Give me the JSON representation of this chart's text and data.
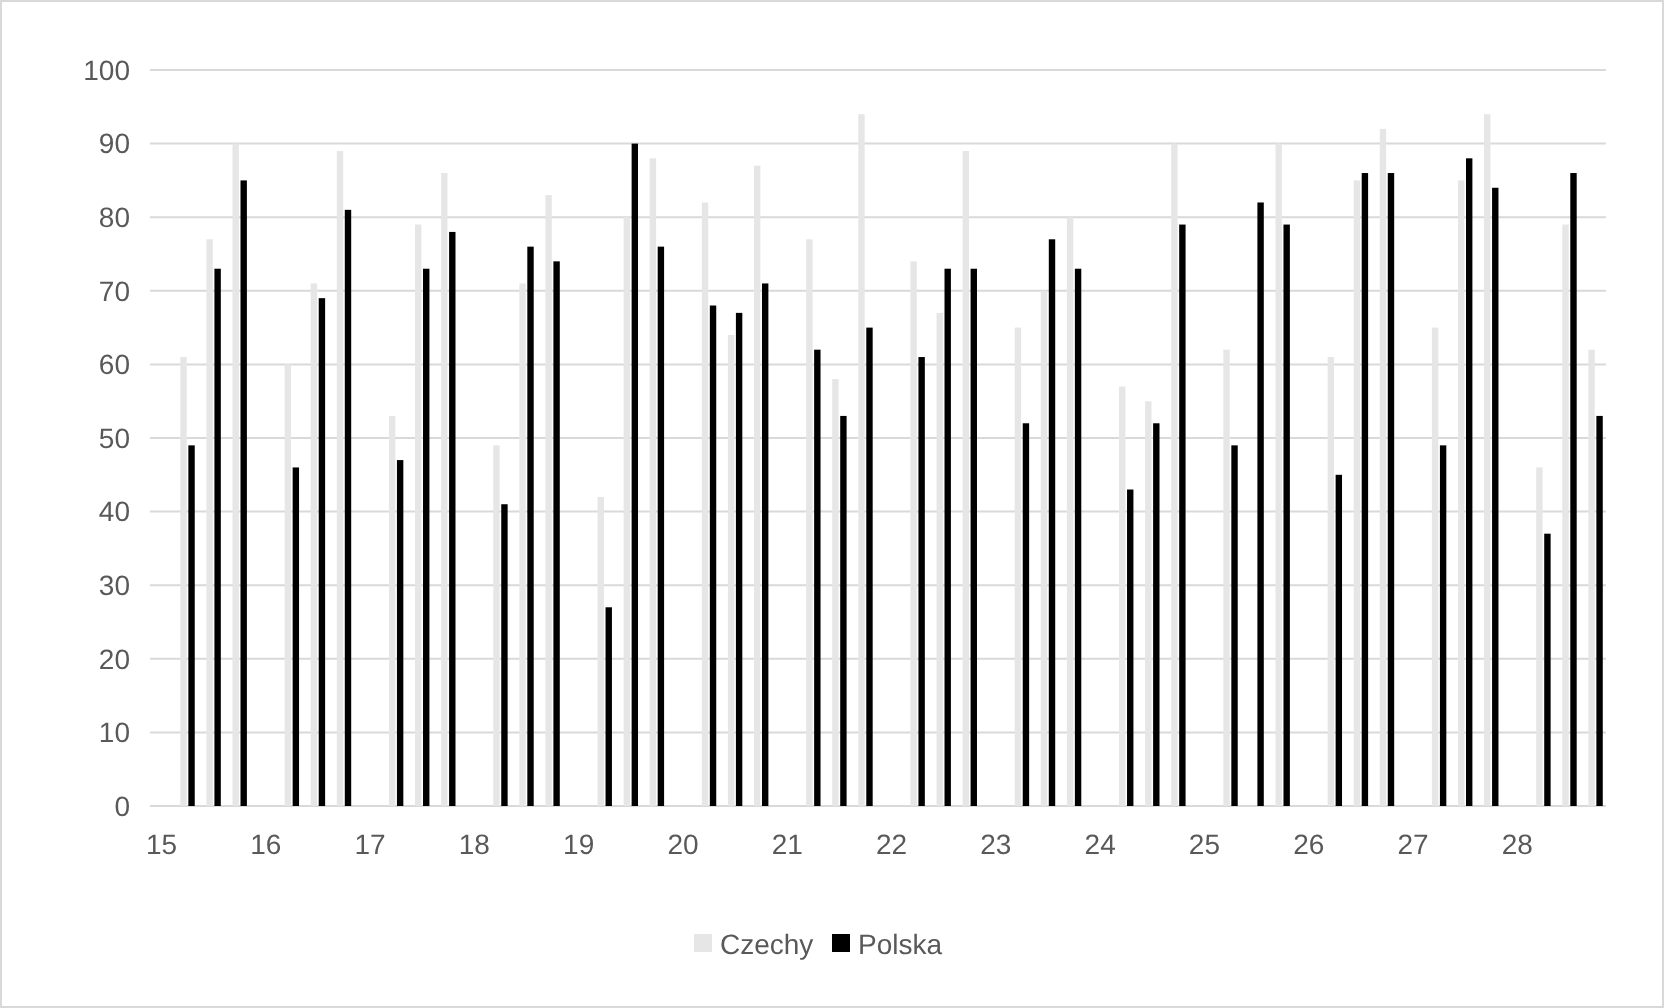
{
  "chart_data": {
    "type": "bar",
    "x": [
      15.25,
      15.5,
      15.75,
      16.25,
      16.5,
      16.75,
      17.25,
      17.5,
      17.75,
      18.25,
      18.5,
      18.75,
      19.25,
      19.5,
      19.75,
      20.25,
      20.5,
      20.75,
      21.25,
      21.5,
      21.75,
      22.25,
      22.5,
      22.75,
      23.25,
      23.5,
      23.75,
      24.25,
      24.5,
      24.75,
      25.25,
      25.5,
      25.75,
      26.25,
      26.5,
      26.75,
      27.25,
      27.5,
      27.75,
      28.25,
      28.5,
      28.75
    ],
    "series": [
      {
        "name": "Czechy",
        "color": "#e7e6e6",
        "values": [
          61,
          77,
          90,
          60,
          71,
          89,
          53,
          79,
          86,
          49,
          71,
          83,
          42,
          80,
          88,
          82,
          64,
          87,
          77,
          58,
          94,
          74,
          67,
          89,
          65,
          70,
          80,
          57,
          55,
          90,
          62,
          null,
          90,
          61,
          85,
          92,
          65,
          85,
          94,
          46,
          79,
          62
        ]
      },
      {
        "name": "Polska",
        "color": "#000000",
        "values": [
          49,
          73,
          85,
          46,
          69,
          81,
          47,
          73,
          78,
          41,
          76,
          74,
          27,
          90,
          76,
          68,
          67,
          71,
          62,
          53,
          65,
          61,
          73,
          73,
          52,
          77,
          73,
          43,
          52,
          79,
          49,
          82,
          79,
          45,
          86,
          86,
          49,
          88,
          84,
          37,
          86,
          53
        ]
      }
    ],
    "xlim": [
      14.89,
      28.85
    ],
    "xticks": [
      15,
      16,
      17,
      18,
      19,
      20,
      21,
      22,
      23,
      24,
      25,
      26,
      27,
      28
    ],
    "ylim": [
      0,
      100
    ],
    "yticks": [
      0,
      10,
      20,
      30,
      40,
      50,
      60,
      70,
      80,
      90,
      100
    ],
    "grid": "y",
    "legend": "bottom"
  }
}
